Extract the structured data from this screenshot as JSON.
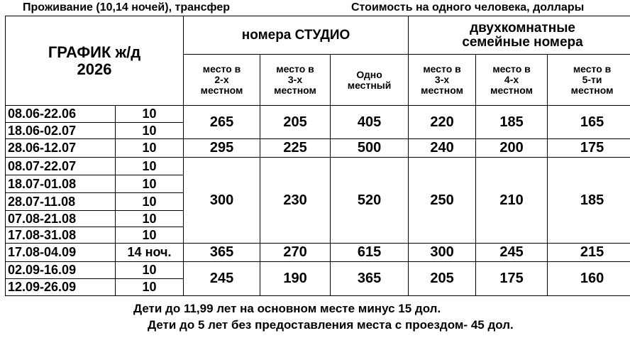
{
  "caption_left": "Проживание (10,14 ночей), трансфер",
  "caption_right": "Стоимость на одного человека, доллары",
  "header": {
    "schedule": "ГРАФИК ж/д",
    "year": "2026",
    "group1": "номера СТУДИО",
    "group2_line1": "двухкомнатные",
    "group2_line2": "семейные номера",
    "cols": [
      [
        "место в",
        "2-х",
        "местном"
      ],
      [
        "место в",
        "3-х",
        "местном"
      ],
      [
        "Одно",
        "местный"
      ],
      [
        "место в",
        "3-х",
        "местном"
      ],
      [
        "место в",
        "4-х",
        "местном"
      ],
      [
        "место в",
        "5-ти",
        "местном"
      ]
    ]
  },
  "dates": [
    [
      "08.06-22.06",
      "10"
    ],
    [
      "18.06-02.07",
      "10"
    ],
    [
      "28.06-12.07",
      "10"
    ],
    [
      "08.07-22.07",
      "10"
    ],
    [
      "18.07-01.08",
      "10"
    ],
    [
      "28.07-11.08",
      "10"
    ],
    [
      "07.08-21.08",
      "10"
    ],
    [
      "17.08-31.08",
      "10"
    ],
    [
      "17.08-04.09",
      "14 ноч."
    ],
    [
      "02.09-16.09",
      "10"
    ],
    [
      "12.09-26.09",
      "10"
    ]
  ],
  "prices": [
    [
      "265",
      "205",
      "405",
      "220",
      "185",
      "165"
    ],
    [
      "295",
      "225",
      "500",
      "240",
      "200",
      "175"
    ],
    [
      "300",
      "230",
      "520",
      "250",
      "210",
      "185"
    ],
    [
      "365",
      "270",
      "615",
      "300",
      "245",
      "215"
    ],
    [
      "245",
      "190",
      "365",
      "205",
      "175",
      "160"
    ]
  ],
  "footer": [
    "Дети до 11,99 лет на основном месте минус 15 дол.",
    "Дети до 5 лет без предоставления места с проездом- 45 дол."
  ]
}
